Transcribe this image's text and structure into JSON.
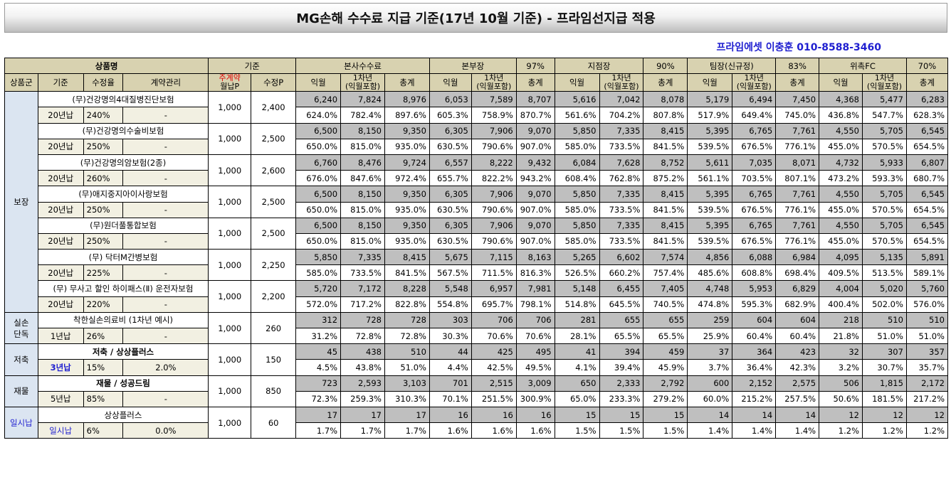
{
  "title": "MG손해 수수료 지급 기준(17년 10월 기준) - 프라임선지급 적용",
  "contact": "프라임에셋 이충훈 010-8588-3460",
  "header": {
    "product_name": "상품명",
    "standard": "기준",
    "head_office": "본사수수료",
    "division_head": "본부장",
    "division_pct": "97%",
    "branch_head": "지점장",
    "branch_pct": "90%",
    "team_head": "팀장(신규정)",
    "team_pct": "83%",
    "fc": "위촉FC",
    "fc_pct": "70%",
    "col_group": "상품군",
    "col_basis": "기준",
    "col_rate": "수정율",
    "col_contract": "계약관리",
    "col_monthly": "주계약\n월납P",
    "col_corrected": "수정P",
    "col_iwol": "익월",
    "col_year1": "1차년\n(익월포함)",
    "col_total": "총계"
  },
  "groups": [
    "보장",
    "실손\n단독",
    "저축",
    "재물",
    "일시납"
  ],
  "products": [
    {
      "name": "(무)건강명의4대질병진단보험",
      "basis": "20년납",
      "rate": "240%",
      "contract": "-",
      "monthly": "1,000",
      "corrected": "2,400",
      "amounts": [
        "6,240",
        "7,824",
        "8,976",
        "6,053",
        "7,589",
        "8,707",
        "5,616",
        "7,042",
        "8,078",
        "5,179",
        "6,494",
        "7,450",
        "4,368",
        "5,477",
        "6,283"
      ],
      "percents": [
        "624.0%",
        "782.4%",
        "897.6%",
        "605.3%",
        "758.9%",
        "870.7%",
        "561.6%",
        "704.2%",
        "807.8%",
        "517.9%",
        "649.4%",
        "745.0%",
        "436.8%",
        "547.7%",
        "628.3%"
      ]
    },
    {
      "name": "(무)건강명의수술비보험",
      "basis": "20년납",
      "rate": "250%",
      "contract": "-",
      "monthly": "1,000",
      "corrected": "2,500",
      "amounts": [
        "6,500",
        "8,150",
        "9,350",
        "6,305",
        "7,906",
        "9,070",
        "5,850",
        "7,335",
        "8,415",
        "5,395",
        "6,765",
        "7,761",
        "4,550",
        "5,705",
        "6,545"
      ],
      "percents": [
        "650.0%",
        "815.0%",
        "935.0%",
        "630.5%",
        "790.6%",
        "907.0%",
        "585.0%",
        "733.5%",
        "841.5%",
        "539.5%",
        "676.5%",
        "776.1%",
        "455.0%",
        "570.5%",
        "654.5%"
      ]
    },
    {
      "name": "(무)건강명의암보험(2종)",
      "basis": "20년납",
      "rate": "260%",
      "contract": "-",
      "monthly": "1,000",
      "corrected": "2,600",
      "amounts": [
        "6,760",
        "8,476",
        "9,724",
        "6,557",
        "8,222",
        "9,432",
        "6,084",
        "7,628",
        "8,752",
        "5,611",
        "7,035",
        "8,071",
        "4,732",
        "5,933",
        "6,807"
      ],
      "percents": [
        "676.0%",
        "847.6%",
        "972.4%",
        "655.7%",
        "822.2%",
        "943.2%",
        "608.4%",
        "762.8%",
        "875.2%",
        "561.1%",
        "703.5%",
        "807.1%",
        "473.2%",
        "593.3%",
        "680.7%"
      ]
    },
    {
      "name": "(무)애지중지아이사랑보험",
      "basis": "20년납",
      "rate": "250%",
      "contract": "-",
      "monthly": "1,000",
      "corrected": "2,500",
      "amounts": [
        "6,500",
        "8,150",
        "9,350",
        "6,305",
        "7,906",
        "9,070",
        "5,850",
        "7,335",
        "8,415",
        "5,395",
        "6,765",
        "7,761",
        "4,550",
        "5,705",
        "6,545"
      ],
      "percents": [
        "650.0%",
        "815.0%",
        "935.0%",
        "630.5%",
        "790.6%",
        "907.0%",
        "585.0%",
        "733.5%",
        "841.5%",
        "539.5%",
        "676.5%",
        "776.1%",
        "455.0%",
        "570.5%",
        "654.5%"
      ]
    },
    {
      "name": "(무)원더풀통합보험",
      "basis": "20년납",
      "rate": "250%",
      "contract": "-",
      "monthly": "1,000",
      "corrected": "2,500",
      "amounts": [
        "6,500",
        "8,150",
        "9,350",
        "6,305",
        "7,906",
        "9,070",
        "5,850",
        "7,335",
        "8,415",
        "5,395",
        "6,765",
        "7,761",
        "4,550",
        "5,705",
        "6,545"
      ],
      "percents": [
        "650.0%",
        "815.0%",
        "935.0%",
        "630.5%",
        "790.6%",
        "907.0%",
        "585.0%",
        "733.5%",
        "841.5%",
        "539.5%",
        "676.5%",
        "776.1%",
        "455.0%",
        "570.5%",
        "654.5%"
      ]
    },
    {
      "name": "(무) 닥터M간병보험",
      "basis": "20년납",
      "rate": "225%",
      "contract": "-",
      "monthly": "1,000",
      "corrected": "2,250",
      "amounts": [
        "5,850",
        "7,335",
        "8,415",
        "5,675",
        "7,115",
        "8,163",
        "5,265",
        "6,602",
        "7,574",
        "4,856",
        "6,088",
        "6,984",
        "4,095",
        "5,135",
        "5,891"
      ],
      "percents": [
        "585.0%",
        "733.5%",
        "841.5%",
        "567.5%",
        "711.5%",
        "816.3%",
        "526.5%",
        "660.2%",
        "757.4%",
        "485.6%",
        "608.8%",
        "698.4%",
        "409.5%",
        "513.5%",
        "589.1%"
      ]
    },
    {
      "name": "(무) 무사고 할인 하이패스(Ⅱ) 운전자보험",
      "basis": "20년납",
      "rate": "220%",
      "contract": "-",
      "monthly": "1,000",
      "corrected": "2,200",
      "amounts": [
        "5,720",
        "7,172",
        "8,228",
        "5,548",
        "6,957",
        "7,981",
        "5,148",
        "6,455",
        "7,405",
        "4,748",
        "5,953",
        "6,829",
        "4,004",
        "5,020",
        "5,760"
      ],
      "percents": [
        "572.0%",
        "717.2%",
        "822.8%",
        "554.8%",
        "695.7%",
        "798.1%",
        "514.8%",
        "645.5%",
        "740.5%",
        "474.8%",
        "595.3%",
        "682.9%",
        "400.4%",
        "502.0%",
        "576.0%"
      ]
    },
    {
      "name": "착한실손의료비 (1차년 예시)",
      "basis": "1년납",
      "rate": "26%",
      "contract": "-",
      "monthly": "1,000",
      "corrected": "260",
      "amounts": [
        "312",
        "728",
        "728",
        "303",
        "706",
        "706",
        "281",
        "655",
        "655",
        "259",
        "604",
        "604",
        "218",
        "510",
        "510"
      ],
      "percents": [
        "31.2%",
        "72.8%",
        "72.8%",
        "30.3%",
        "70.6%",
        "70.6%",
        "28.1%",
        "65.5%",
        "65.5%",
        "25.9%",
        "60.4%",
        "60.4%",
        "21.8%",
        "51.0%",
        "51.0%"
      ]
    },
    {
      "name": "저축 / 상상플러스",
      "basis": "3년납",
      "rate": "15%",
      "contract": "2.0%",
      "monthly": "1,000",
      "corrected": "150",
      "amounts": [
        "45",
        "438",
        "510",
        "44",
        "425",
        "495",
        "41",
        "394",
        "459",
        "37",
        "364",
        "423",
        "32",
        "307",
        "357"
      ],
      "percents": [
        "4.5%",
        "43.8%",
        "51.0%",
        "4.4%",
        "42.5%",
        "49.5%",
        "4.1%",
        "39.4%",
        "45.9%",
        "3.7%",
        "36.4%",
        "42.3%",
        "3.2%",
        "30.7%",
        "35.7%"
      ]
    },
    {
      "name": "재물 / 성공드림",
      "basis": "5년납",
      "rate": "85%",
      "contract": "-",
      "monthly": "1,000",
      "corrected": "850",
      "amounts": [
        "723",
        "2,593",
        "3,103",
        "701",
        "2,515",
        "3,009",
        "650",
        "2,333",
        "2,792",
        "600",
        "2,152",
        "2,575",
        "506",
        "1,815",
        "2,172"
      ],
      "percents": [
        "72.3%",
        "259.3%",
        "310.3%",
        "70.1%",
        "251.5%",
        "300.9%",
        "65.0%",
        "233.3%",
        "279.2%",
        "60.0%",
        "215.2%",
        "257.5%",
        "50.6%",
        "181.5%",
        "217.2%"
      ]
    },
    {
      "name": "상상플러스",
      "basis": "일시납",
      "rate": "6%",
      "contract": "0.0%",
      "monthly": "1,000",
      "corrected": "60",
      "amounts": [
        "17",
        "17",
        "17",
        "16",
        "16",
        "16",
        "15",
        "15",
        "15",
        "14",
        "14",
        "14",
        "12",
        "12",
        "12"
      ],
      "percents": [
        "1.7%",
        "1.7%",
        "1.7%",
        "1.6%",
        "1.6%",
        "1.6%",
        "1.5%",
        "1.5%",
        "1.5%",
        "1.4%",
        "1.4%",
        "1.4%",
        "1.2%",
        "1.2%",
        "1.2%"
      ]
    }
  ]
}
